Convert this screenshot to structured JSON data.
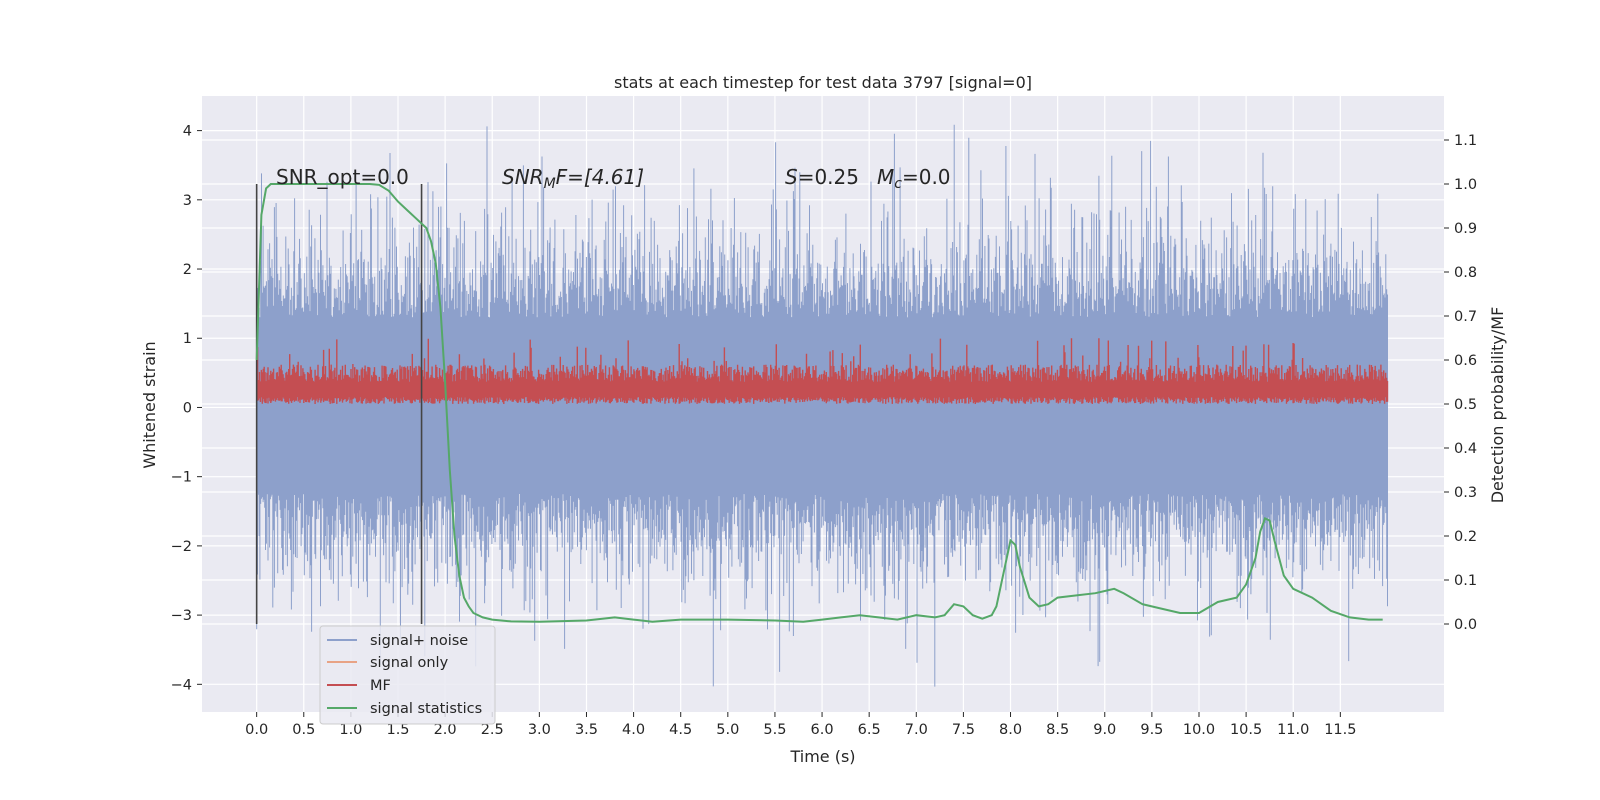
{
  "chart_data": {
    "type": "line",
    "title": "stats at each timestep for test data 3797 [signal=0]",
    "xlabel": "Time (s)",
    "ylabel_left": "Whitened strain",
    "ylabel_right": "Detection probability/MF",
    "x_ticks": [
      "0.0",
      "0.5",
      "1.0",
      "1.5",
      "2.0",
      "2.5",
      "3.0",
      "3.5",
      "4.0",
      "4.5",
      "5.0",
      "5.5",
      "6.0",
      "6.5",
      "7.0",
      "7.5",
      "8.0",
      "8.5",
      "9.0",
      "9.5",
      "10.0",
      "10.5",
      "11.0",
      "11.5"
    ],
    "y_left_ticks": [
      "4",
      "3",
      "2",
      "1",
      "0",
      "−1",
      "−2",
      "−3",
      "−4"
    ],
    "y_right_ticks": [
      "1.1",
      "1.0",
      "0.9",
      "0.8",
      "0.7",
      "0.6",
      "0.5",
      "0.4",
      "0.3",
      "0.2",
      "0.1",
      "0.0"
    ],
    "xlim": [
      -0.58,
      12.6
    ],
    "ylim_left": [
      -4.4,
      4.5
    ],
    "ylim_right": [
      -0.2,
      1.2
    ],
    "grid": true,
    "legend_position": "bottom-left",
    "annotations": {
      "snr_opt": "SNR_opt=0.0",
      "snr_mf_main": "SNR",
      "snr_mf_sub": "M",
      "snr_mf_rest": "F=[4.61]",
      "s_main": "S",
      "s_rest": "=0.25",
      "mc_main": "M",
      "mc_sub": "c",
      "mc_rest": "=0.0"
    },
    "vertical_lines_x": [
      0.0,
      1.75
    ],
    "series": [
      {
        "name": "signal+ noise",
        "color": "#8da0cb",
        "axis": "left",
        "style": "dense noise band",
        "x_range": [
          0.0,
          12.0
        ],
        "core_band": [
          -1.25,
          1.3
        ],
        "spike_range": [
          -4.05,
          4.1
        ]
      },
      {
        "name": "signal only",
        "color": "#e8a385",
        "axis": "left",
        "values": []
      },
      {
        "name": "MF",
        "color": "#c44e52",
        "axis": "left",
        "style": "dense band",
        "x_range": [
          0.0,
          12.0
        ],
        "band": [
          0.05,
          0.62
        ],
        "max": 1.0
      },
      {
        "name": "signal statistics",
        "color": "#55a868",
        "axis": "right",
        "x": [
          0.0,
          0.05,
          0.1,
          0.15,
          0.2,
          0.3,
          0.5,
          0.8,
          1.0,
          1.2,
          1.3,
          1.4,
          1.5,
          1.6,
          1.7,
          1.8,
          1.85,
          1.9,
          1.95,
          2.0,
          2.05,
          2.1,
          2.15,
          2.2,
          2.25,
          2.3,
          2.4,
          2.5,
          2.7,
          3.0,
          3.5,
          3.8,
          4.0,
          4.2,
          4.5,
          5.0,
          5.5,
          5.8,
          6.0,
          6.2,
          6.4,
          6.6,
          6.8,
          7.0,
          7.2,
          7.3,
          7.4,
          7.5,
          7.6,
          7.7,
          7.8,
          7.85,
          7.9,
          7.95,
          8.0,
          8.05,
          8.1,
          8.2,
          8.3,
          8.4,
          8.5,
          8.7,
          8.9,
          9.0,
          9.1,
          9.2,
          9.4,
          9.6,
          9.8,
          10.0,
          10.2,
          10.4,
          10.5,
          10.6,
          10.65,
          10.7,
          10.75,
          10.8,
          10.9,
          11.0,
          11.2,
          11.4,
          11.6,
          11.8,
          11.95
        ],
        "values": [
          0.6,
          0.93,
          0.99,
          1.0,
          1.0,
          1.0,
          1.0,
          1.0,
          1.0,
          1.0,
          0.998,
          0.985,
          0.96,
          0.94,
          0.92,
          0.9,
          0.87,
          0.82,
          0.72,
          0.55,
          0.35,
          0.2,
          0.11,
          0.06,
          0.04,
          0.025,
          0.015,
          0.01,
          0.006,
          0.005,
          0.008,
          0.015,
          0.01,
          0.005,
          0.01,
          0.01,
          0.008,
          0.005,
          0.01,
          0.015,
          0.02,
          0.015,
          0.01,
          0.02,
          0.015,
          0.02,
          0.045,
          0.04,
          0.02,
          0.012,
          0.02,
          0.04,
          0.09,
          0.14,
          0.19,
          0.18,
          0.13,
          0.06,
          0.04,
          0.045,
          0.06,
          0.065,
          0.07,
          0.075,
          0.08,
          0.07,
          0.045,
          0.035,
          0.025,
          0.025,
          0.05,
          0.06,
          0.09,
          0.15,
          0.21,
          0.24,
          0.235,
          0.19,
          0.11,
          0.08,
          0.06,
          0.03,
          0.015,
          0.01,
          0.01
        ]
      }
    ]
  }
}
